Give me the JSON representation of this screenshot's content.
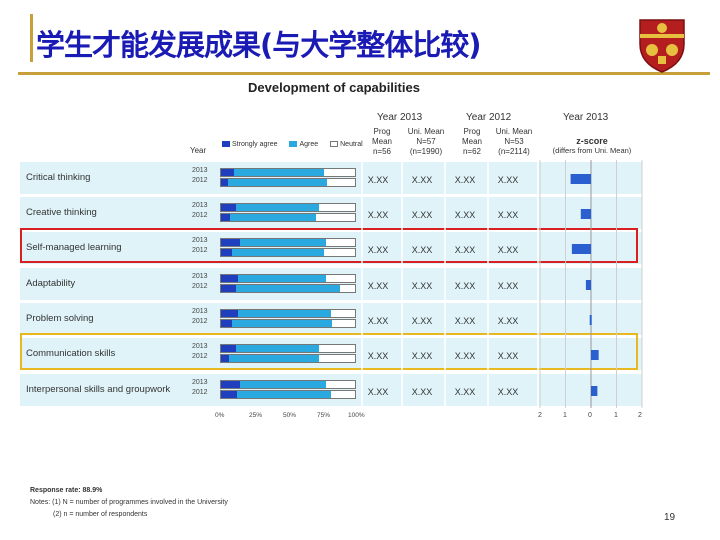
{
  "slide": {
    "title": "学生才能发展成果(与大学整体比较)",
    "page_number": "19"
  },
  "chart_data": {
    "type": "bar",
    "title": "Development of capabilities",
    "year_col_label": "Year",
    "legend": [
      "Strongly agree",
      "Agree",
      "Neutral"
    ],
    "colors": {
      "strongly_agree": "#1f3fbf",
      "agree": "#29a9e0",
      "neutral": "#ffffff",
      "zscore": "#2a5fd0"
    },
    "categories": [
      "Critical thinking",
      "Creative thinking",
      "Self-managed learning",
      "Adaptability",
      "Problem solving",
      "Communication skills",
      "Interpersonal skills and groupwork"
    ],
    "years": [
      "2013",
      "2012"
    ],
    "series": [
      {
        "name": "Strongly agree",
        "values_2013": [
          10,
          11,
          14,
          13,
          13,
          11,
          14
        ],
        "values_2012": [
          5,
          7,
          8,
          11,
          8,
          6,
          12
        ]
      },
      {
        "name": "Agree",
        "values_2013": [
          67,
          62,
          64,
          65,
          69,
          62,
          64
        ],
        "values_2012": [
          74,
          64,
          69,
          78,
          75,
          67,
          70
        ]
      },
      {
        "name": "Neutral",
        "values_2013": [
          23,
          27,
          22,
          22,
          18,
          27,
          22
        ],
        "values_2012": [
          21,
          29,
          23,
          11,
          17,
          27,
          18
        ]
      }
    ],
    "xlim": [
      0,
      100
    ],
    "x_ticks": [
      "0%",
      "25%",
      "50%",
      "75%",
      "100%"
    ],
    "columns": [
      {
        "group": "Year 2013",
        "lines": [
          "Prog",
          "Mean",
          "n=56"
        ]
      },
      {
        "group": "Year 2013",
        "lines": [
          "Uni. Mean",
          "N=57",
          "(n=1990)"
        ]
      },
      {
        "group": "Year 2012",
        "lines": [
          "Prog",
          "Mean",
          "n=62"
        ]
      },
      {
        "group": "Year 2012",
        "lines": [
          "Uni. Mean",
          "N=53",
          "(n=2114)"
        ]
      }
    ],
    "col_groups": [
      "Year 2013",
      "Year 2012",
      "Year 2013"
    ],
    "cell_value": "X.XX",
    "zscore": {
      "title": "z-score",
      "subtitle": "(differs from Uni. Mean)",
      "xlim": [
        -2,
        2
      ],
      "ticks": [
        "2",
        "1",
        "0",
        "1",
        "2"
      ],
      "values": [
        -0.8,
        -0.4,
        -0.75,
        -0.2,
        -0.05,
        0.3,
        0.25
      ]
    }
  },
  "footnotes": {
    "response_rate": "Response rate: 88.9%",
    "note1": "Notes: (1) N = number of programmes involved in the University",
    "note2": "(2) n = number of respondents"
  }
}
